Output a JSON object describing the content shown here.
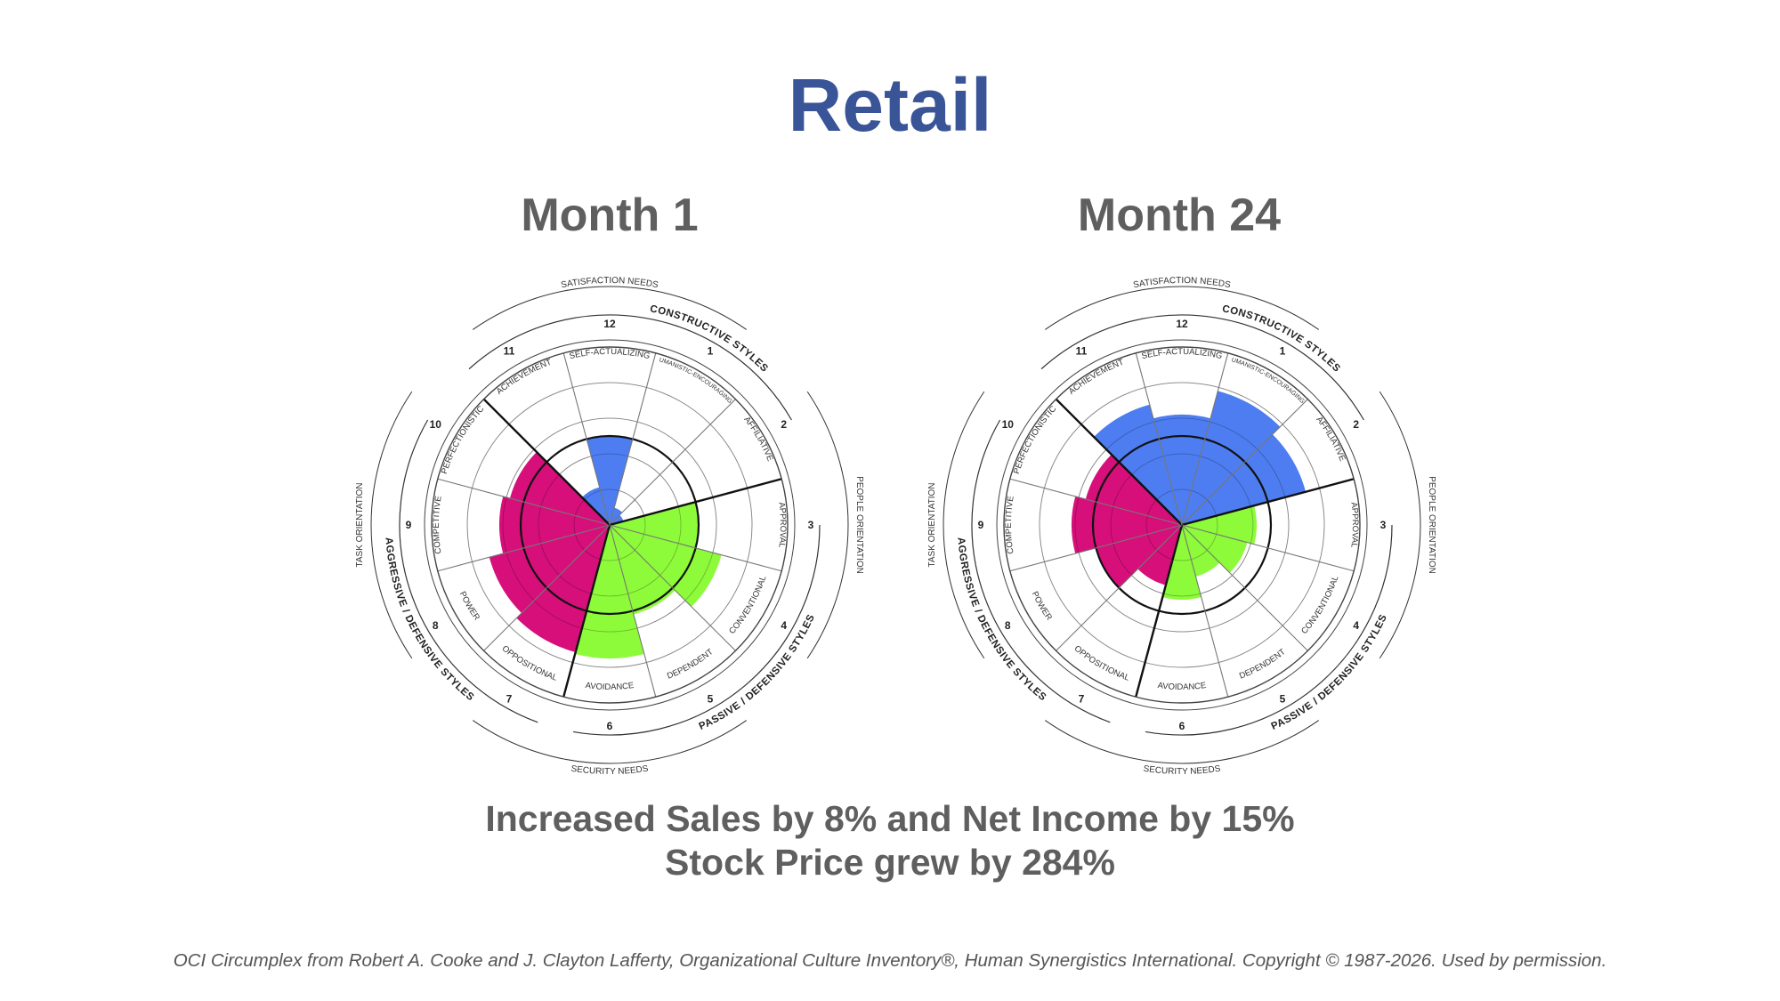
{
  "title": "Retail",
  "colors": {
    "title": "#3a5597",
    "constructive": "#4d7df0",
    "passive": "#8dfa3a",
    "aggressive": "#d60f7a"
  },
  "chart_labels": {
    "satisfaction": "SATISFACTION NEEDS",
    "security": "SECURITY NEEDS",
    "task": "TASK ORIENTATION",
    "people": "PEOPLE ORIENTATION",
    "constructive": "CONSTRUCTIVE STYLES",
    "passive": "PASSIVE / DEFENSIVE STYLES",
    "aggressive": "AGGRESSIVE / DEFENSIVE STYLES"
  },
  "chart_data": [
    {
      "type": "polar-area",
      "title": "Month 1",
      "rlim": [
        0,
        100
      ],
      "categories": [
        {
          "num": "1",
          "name": "HUMANISTIC-ENCOURAGING",
          "group": "constructive"
        },
        {
          "num": "2",
          "name": "AFFILIATIVE",
          "group": "constructive"
        },
        {
          "num": "3",
          "name": "APPROVAL",
          "group": "passive"
        },
        {
          "num": "4",
          "name": "CONVENTIONAL",
          "group": "passive"
        },
        {
          "num": "5",
          "name": "DEPENDENT",
          "group": "passive"
        },
        {
          "num": "6",
          "name": "AVOIDANCE",
          "group": "passive"
        },
        {
          "num": "7",
          "name": "OPPOSITIONAL",
          "group": "aggressive"
        },
        {
          "num": "8",
          "name": "POWER",
          "group": "aggressive"
        },
        {
          "num": "9",
          "name": "COMPETITIVE",
          "group": "aggressive"
        },
        {
          "num": "10",
          "name": "PERFECTIONISTIC",
          "group": "aggressive"
        },
        {
          "num": "11",
          "name": "ACHIEVEMENT",
          "group": "constructive"
        },
        {
          "num": "12",
          "name": "SELF-ACTUALIZING",
          "group": "constructive"
        }
      ],
      "values": [
        10,
        8,
        50,
        65,
        52,
        75,
        74,
        70,
        62,
        58,
        22,
        50
      ]
    },
    {
      "type": "polar-area",
      "title": "Month 24",
      "rlim": [
        0,
        100
      ],
      "categories": [
        {
          "num": "1",
          "name": "HUMANISTIC-ENCOURAGING",
          "group": "constructive"
        },
        {
          "num": "2",
          "name": "AFFILIATIVE",
          "group": "constructive"
        },
        {
          "num": "3",
          "name": "APPROVAL",
          "group": "passive"
        },
        {
          "num": "4",
          "name": "CONVENTIONAL",
          "group": "passive"
        },
        {
          "num": "5",
          "name": "DEPENDENT",
          "group": "passive"
        },
        {
          "num": "6",
          "name": "AVOIDANCE",
          "group": "passive"
        },
        {
          "num": "7",
          "name": "OPPOSITIONAL",
          "group": "aggressive"
        },
        {
          "num": "8",
          "name": "POWER",
          "group": "aggressive"
        },
        {
          "num": "9",
          "name": "COMPETITIVE",
          "group": "aggressive"
        },
        {
          "num": "10",
          "name": "PERFECTIONISTIC",
          "group": "aggressive"
        },
        {
          "num": "11",
          "name": "ACHIEVEMENT",
          "group": "constructive"
        },
        {
          "num": "12",
          "name": "SELF-ACTUALIZING",
          "group": "constructive"
        }
      ],
      "values": [
        78,
        72,
        42,
        38,
        30,
        42,
        35,
        50,
        62,
        56,
        70,
        62
      ]
    }
  ],
  "results": {
    "line1": "Increased Sales by 8% and Net Income by 15%",
    "line2": "Stock Price grew by 284%"
  },
  "footer": "OCI Circumplex from Robert A. Cooke and J. Clayton Lafferty, Organizational Culture Inventory®, Human Synergistics International. Copyright © 1987-2026. Used by permission."
}
